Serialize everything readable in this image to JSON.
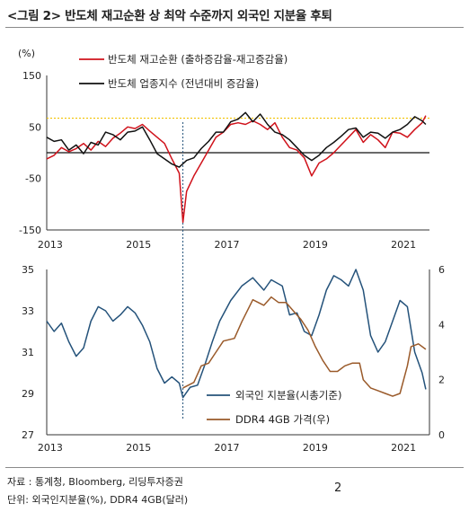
{
  "title": "<그림 2> 반도체 재고순환 상 최악 수준까지 외국인 지분율 후퇴",
  "footer": {
    "source": "자료 : 통계청, Bloomberg, 리딩투자증권",
    "unit": "단위: 외국인지분율(%), DDR4 4GB(달러)",
    "page": "2"
  },
  "colors": {
    "red": "#d0121b",
    "black": "#111111",
    "blue": "#24527a",
    "brown": "#9a5a2a",
    "yellow_ref": "#f2c200",
    "blue_ref": "#3a8fc0"
  },
  "chart_data": [
    {
      "type": "line",
      "unit_label": "(%)",
      "ylim": [
        -150,
        150
      ],
      "yticks": [
        "150",
        "50",
        "-50",
        "-150"
      ],
      "xticks": [
        "2013",
        "2015",
        "2017",
        "2019",
        "2021"
      ],
      "x_range": [
        "2013-01",
        "2021-09"
      ],
      "reference_lines": [
        {
          "orientation": "horizontal",
          "y": 0,
          "color": "black"
        },
        {
          "orientation": "horizontal",
          "y": 67,
          "color": "yellow",
          "style": "dotted"
        },
        {
          "orientation": "vertical",
          "x": "2016-02",
          "color": "blue",
          "style": "dotted"
        }
      ],
      "series": [
        {
          "name": "반도체 재고순환 (출하증감율-재고증감율)",
          "color": "red",
          "points": [
            [
              "2013-01",
              -12
            ],
            [
              "2013-03",
              -5
            ],
            [
              "2013-05",
              10
            ],
            [
              "2013-07",
              2
            ],
            [
              "2013-09",
              8
            ],
            [
              "2013-11",
              18
            ],
            [
              "2014-01",
              5
            ],
            [
              "2014-03",
              22
            ],
            [
              "2014-05",
              12
            ],
            [
              "2014-07",
              28
            ],
            [
              "2014-09",
              38
            ],
            [
              "2014-11",
              50
            ],
            [
              "2015-01",
              47
            ],
            [
              "2015-03",
              55
            ],
            [
              "2015-05",
              42
            ],
            [
              "2015-07",
              30
            ],
            [
              "2015-09",
              18
            ],
            [
              "2015-11",
              -12
            ],
            [
              "2016-01",
              -40
            ],
            [
              "2016-02",
              -135
            ],
            [
              "2016-03",
              -75
            ],
            [
              "2016-05",
              -45
            ],
            [
              "2016-07",
              -20
            ],
            [
              "2016-09",
              5
            ],
            [
              "2016-11",
              30
            ],
            [
              "2017-01",
              40
            ],
            [
              "2017-03",
              55
            ],
            [
              "2017-05",
              58
            ],
            [
              "2017-07",
              55
            ],
            [
              "2017-09",
              62
            ],
            [
              "2017-11",
              55
            ],
            [
              "2018-01",
              45
            ],
            [
              "2018-03",
              58
            ],
            [
              "2018-05",
              30
            ],
            [
              "2018-07",
              10
            ],
            [
              "2018-09",
              5
            ],
            [
              "2018-11",
              -10
            ],
            [
              "2019-01",
              -45
            ],
            [
              "2019-03",
              -20
            ],
            [
              "2019-05",
              -12
            ],
            [
              "2019-07",
              0
            ],
            [
              "2019-09",
              15
            ],
            [
              "2019-11",
              30
            ],
            [
              "2020-01",
              45
            ],
            [
              "2020-03",
              20
            ],
            [
              "2020-05",
              35
            ],
            [
              "2020-07",
              25
            ],
            [
              "2020-09",
              10
            ],
            [
              "2020-11",
              40
            ],
            [
              "2021-01",
              38
            ],
            [
              "2021-03",
              30
            ],
            [
              "2021-05",
              45
            ],
            [
              "2021-07",
              58
            ],
            [
              "2021-08",
              72
            ]
          ]
        },
        {
          "name": "반도체 업종지수 (전년대비 증감율)",
          "color": "black",
          "points": [
            [
              "2013-01",
              30
            ],
            [
              "2013-03",
              22
            ],
            [
              "2013-05",
              25
            ],
            [
              "2013-07",
              5
            ],
            [
              "2013-09",
              15
            ],
            [
              "2013-11",
              -2
            ],
            [
              "2014-01",
              20
            ],
            [
              "2014-03",
              15
            ],
            [
              "2014-05",
              40
            ],
            [
              "2014-07",
              35
            ],
            [
              "2014-09",
              25
            ],
            [
              "2014-11",
              40
            ],
            [
              "2015-01",
              42
            ],
            [
              "2015-03",
              50
            ],
            [
              "2015-05",
              25
            ],
            [
              "2015-07",
              -2
            ],
            [
              "2015-09",
              -12
            ],
            [
              "2015-11",
              -22
            ],
            [
              "2016-01",
              -28
            ],
            [
              "2016-03",
              -15
            ],
            [
              "2016-05",
              -10
            ],
            [
              "2016-07",
              8
            ],
            [
              "2016-09",
              22
            ],
            [
              "2016-11",
              40
            ],
            [
              "2017-01",
              40
            ],
            [
              "2017-03",
              60
            ],
            [
              "2017-05",
              65
            ],
            [
              "2017-07",
              78
            ],
            [
              "2017-09",
              60
            ],
            [
              "2017-11",
              75
            ],
            [
              "2018-01",
              55
            ],
            [
              "2018-03",
              40
            ],
            [
              "2018-05",
              35
            ],
            [
              "2018-07",
              25
            ],
            [
              "2018-09",
              10
            ],
            [
              "2018-11",
              -5
            ],
            [
              "2019-01",
              -15
            ],
            [
              "2019-03",
              -5
            ],
            [
              "2019-05",
              10
            ],
            [
              "2019-07",
              20
            ],
            [
              "2019-09",
              32
            ],
            [
              "2019-11",
              45
            ],
            [
              "2020-01",
              48
            ],
            [
              "2020-03",
              30
            ],
            [
              "2020-05",
              40
            ],
            [
              "2020-07",
              38
            ],
            [
              "2020-09",
              28
            ],
            [
              "2020-11",
              40
            ],
            [
              "2021-01",
              45
            ],
            [
              "2021-03",
              55
            ],
            [
              "2021-05",
              70
            ],
            [
              "2021-07",
              62
            ],
            [
              "2021-08",
              55
            ]
          ]
        }
      ]
    },
    {
      "type": "line",
      "ylim_left": [
        27,
        35
      ],
      "ylim_right": [
        0,
        6
      ],
      "yticks_left": [
        "35",
        "33",
        "31",
        "29",
        "27"
      ],
      "yticks_right": [
        "6",
        "4",
        "2",
        "0"
      ],
      "xticks": [
        "2013",
        "2015",
        "2017",
        "2019",
        "2021"
      ],
      "x_range": [
        "2013-01",
        "2021-09"
      ],
      "series": [
        {
          "name": "외국인 지분율(시총기준)",
          "axis": "left",
          "color": "blue",
          "points": [
            [
              "2013-01",
              32.5
            ],
            [
              "2013-03",
              32.0
            ],
            [
              "2013-05",
              32.4
            ],
            [
              "2013-07",
              31.5
            ],
            [
              "2013-09",
              30.8
            ],
            [
              "2013-11",
              31.2
            ],
            [
              "2014-01",
              32.5
            ],
            [
              "2014-03",
              33.2
            ],
            [
              "2014-05",
              33.0
            ],
            [
              "2014-07",
              32.5
            ],
            [
              "2014-09",
              32.8
            ],
            [
              "2014-11",
              33.2
            ],
            [
              "2015-01",
              32.9
            ],
            [
              "2015-03",
              32.3
            ],
            [
              "2015-05",
              31.5
            ],
            [
              "2015-07",
              30.2
            ],
            [
              "2015-09",
              29.5
            ],
            [
              "2015-11",
              29.8
            ],
            [
              "2016-01",
              29.5
            ],
            [
              "2016-02",
              28.8
            ],
            [
              "2016-04",
              29.3
            ],
            [
              "2016-06",
              29.4
            ],
            [
              "2016-08",
              30.4
            ],
            [
              "2016-10",
              31.5
            ],
            [
              "2016-12",
              32.5
            ],
            [
              "2017-03",
              33.5
            ],
            [
              "2017-06",
              34.2
            ],
            [
              "2017-09",
              34.6
            ],
            [
              "2017-12",
              34.0
            ],
            [
              "2018-02",
              34.5
            ],
            [
              "2018-05",
              34.2
            ],
            [
              "2018-07",
              32.8
            ],
            [
              "2018-09",
              32.9
            ],
            [
              "2018-11",
              32.0
            ],
            [
              "2019-01",
              31.8
            ],
            [
              "2019-03",
              32.8
            ],
            [
              "2019-05",
              34.0
            ],
            [
              "2019-07",
              34.7
            ],
            [
              "2019-09",
              34.5
            ],
            [
              "2019-11",
              34.2
            ],
            [
              "2020-01",
              35.0
            ],
            [
              "2020-03",
              34.0
            ],
            [
              "2020-05",
              31.8
            ],
            [
              "2020-07",
              31.0
            ],
            [
              "2020-09",
              31.5
            ],
            [
              "2020-11",
              32.5
            ],
            [
              "2021-01",
              33.5
            ],
            [
              "2021-03",
              33.2
            ],
            [
              "2021-05",
              31.0
            ],
            [
              "2021-07",
              30.0
            ],
            [
              "2021-08",
              29.2
            ]
          ]
        },
        {
          "name": "DDR4 4GB 가격(우)",
          "axis": "right",
          "color": "brown",
          "points": [
            [
              "2016-02",
              1.7
            ],
            [
              "2016-05",
              1.9
            ],
            [
              "2016-07",
              2.5
            ],
            [
              "2016-09",
              2.6
            ],
            [
              "2016-11",
              3.0
            ],
            [
              "2017-01",
              3.4
            ],
            [
              "2017-04",
              3.5
            ],
            [
              "2017-06",
              4.1
            ],
            [
              "2017-09",
              4.9
            ],
            [
              "2017-12",
              4.7
            ],
            [
              "2018-02",
              5.0
            ],
            [
              "2018-04",
              4.8
            ],
            [
              "2018-06",
              4.8
            ],
            [
              "2018-08",
              4.5
            ],
            [
              "2018-10",
              4.2
            ],
            [
              "2018-12",
              3.8
            ],
            [
              "2019-02",
              3.2
            ],
            [
              "2019-04",
              2.7
            ],
            [
              "2019-06",
              2.3
            ],
            [
              "2019-08",
              2.3
            ],
            [
              "2019-10",
              2.5
            ],
            [
              "2019-12",
              2.6
            ],
            [
              "2020-02",
              2.6
            ],
            [
              "2020-03",
              2.0
            ],
            [
              "2020-05",
              1.7
            ],
            [
              "2020-07",
              1.6
            ],
            [
              "2020-09",
              1.5
            ],
            [
              "2020-11",
              1.4
            ],
            [
              "2021-01",
              1.5
            ],
            [
              "2021-03",
              2.5
            ],
            [
              "2021-04",
              3.2
            ],
            [
              "2021-06",
              3.3
            ],
            [
              "2021-08",
              3.1
            ]
          ]
        }
      ]
    }
  ]
}
